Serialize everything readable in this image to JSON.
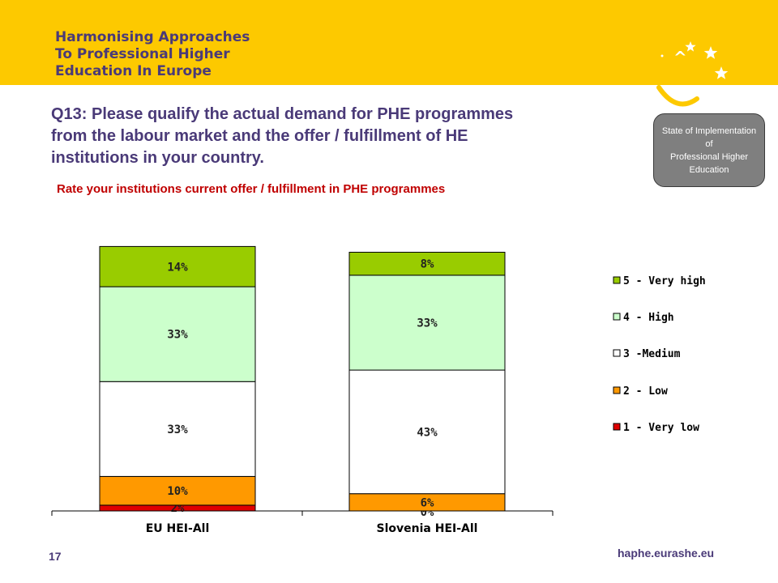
{
  "header": {
    "logo_lines": [
      "Harmonising Approaches",
      "To Professional Higher",
      "Education In Europe"
    ],
    "banner_color": "#fdc900",
    "text_color": "#4a3a78"
  },
  "badge": {
    "lines": [
      "State of Implementation",
      "of",
      "Professional Higher",
      "Education"
    ]
  },
  "slide": {
    "question_lines": [
      "Q13: Please qualify the actual demand for PHE programmes",
      "from the labour market and the offer / fulfillment of HE",
      "institutions in your country."
    ],
    "page_number": "17",
    "site_url": "haphe.eurashe.eu"
  },
  "chart_data": {
    "type": "bar",
    "stacked": true,
    "title": "Rate your institutions current offer / fulfillment in PHE programmes",
    "categories": [
      "EU HEI-All",
      "Slovenia HEI-All"
    ],
    "series": [
      {
        "name": "1 - Very low",
        "color": "#e00000",
        "values": [
          2,
          0
        ],
        "labels": [
          "2%",
          "0%"
        ]
      },
      {
        "name": "2 - Low",
        "color": "#ff9900",
        "values": [
          10,
          6
        ],
        "labels": [
          "10%",
          "6%"
        ]
      },
      {
        "name": "3 -Medium",
        "color": "#ffffff",
        "values": [
          33,
          43
        ],
        "labels": [
          "33%",
          "43%"
        ]
      },
      {
        "name": "4 - High",
        "color": "#ccffcc",
        "values": [
          33,
          33
        ],
        "labels": [
          "33%",
          "33%"
        ]
      },
      {
        "name": "5 - Very high",
        "color": "#99cc00",
        "values": [
          14,
          8
        ],
        "labels": [
          "14%",
          "8%"
        ]
      }
    ],
    "legend_order": [
      "5 - Very high",
      "4 - High",
      "3 -Medium",
      "2 - Low",
      "1 - Very low"
    ],
    "legend_position": "right",
    "grid": false
  }
}
